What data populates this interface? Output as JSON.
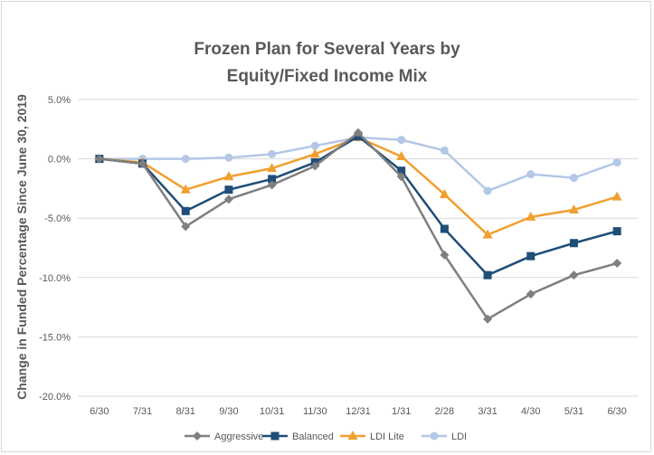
{
  "chart_data": {
    "type": "line",
    "title_line1": "Frozen Plan for Several Years by",
    "title_line2": "Equity/Fixed Income Mix",
    "xlabel": "",
    "ylabel": "Change in Funded Percentage Since June 30, 2019",
    "ylim": [
      -20,
      5
    ],
    "yticks": [
      "5.0%",
      "0.0%",
      "-5.0%",
      "-10.0%",
      "-15.0%",
      "-20.0%"
    ],
    "grid": true,
    "legend_position": "bottom",
    "categories": [
      "6/30",
      "7/31",
      "8/31",
      "9/30",
      "10/31",
      "11/30",
      "12/31",
      "1/31",
      "2/28",
      "3/31",
      "4/30",
      "5/31",
      "6/30"
    ],
    "series": [
      {
        "name": "Aggressive",
        "color": "#7f7f7f",
        "marker": "diamond",
        "values": [
          0.0,
          -0.4,
          -5.7,
          -3.4,
          -2.2,
          -0.6,
          2.2,
          -1.5,
          -8.1,
          -13.5,
          -11.4,
          -9.8,
          -8.8
        ]
      },
      {
        "name": "Balanced",
        "color": "#1f4e79",
        "marker": "square",
        "values": [
          0.0,
          -0.4,
          -4.4,
          -2.6,
          -1.7,
          -0.3,
          1.9,
          -1.0,
          -5.9,
          -9.8,
          -8.2,
          -7.1,
          -6.1
        ]
      },
      {
        "name": "LDI Lite",
        "color": "#f0a030",
        "marker": "triangle",
        "values": [
          0.0,
          -0.3,
          -2.6,
          -1.5,
          -0.8,
          0.4,
          1.8,
          0.2,
          -3.0,
          -6.4,
          -4.9,
          -4.3,
          -3.2
        ]
      },
      {
        "name": "LDI",
        "color": "#b4c7e7",
        "marker": "circle",
        "values": [
          0.0,
          0.0,
          0.0,
          0.1,
          0.4,
          1.1,
          1.8,
          1.6,
          0.7,
          -2.7,
          -1.3,
          -1.6,
          -0.3
        ]
      }
    ]
  }
}
